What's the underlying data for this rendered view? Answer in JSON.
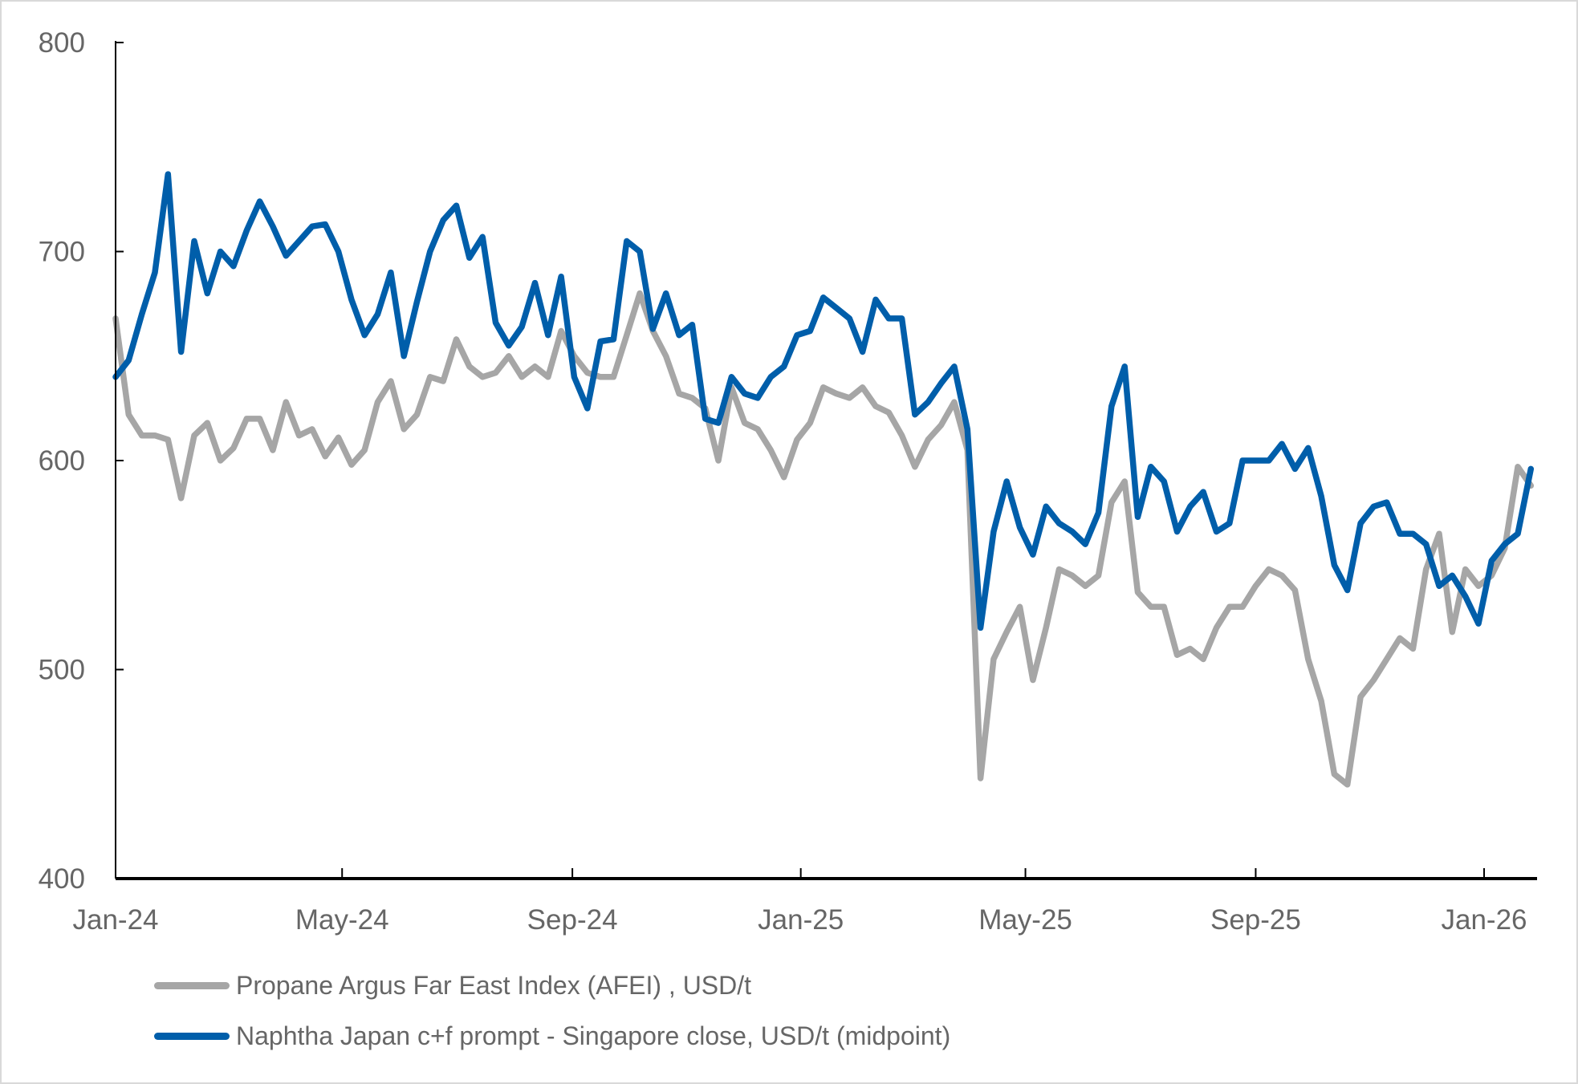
{
  "chart_data": {
    "type": "line",
    "title": "",
    "xlabel": "",
    "ylabel": "",
    "ylim": [
      400,
      800
    ],
    "yticks": [
      400,
      500,
      600,
      700,
      800
    ],
    "xlim": [
      "2024-01-01",
      "2026-01-29"
    ],
    "xticks": [
      {
        "label": "Jan-24",
        "date": "2024-01-01"
      },
      {
        "label": "May-24",
        "date": "2024-05-01"
      },
      {
        "label": "Sep-24",
        "date": "2024-09-01"
      },
      {
        "label": "Jan-25",
        "date": "2025-01-01"
      },
      {
        "label": "May-25",
        "date": "2025-05-01"
      },
      {
        "label": "Sep-25",
        "date": "2025-09-01"
      },
      {
        "label": "Jan-26",
        "date": "2026-01-01"
      }
    ],
    "grid": false,
    "legend_position": "bottom",
    "x": [
      "2024-01-01",
      "2024-01-08",
      "2024-01-15",
      "2024-01-22",
      "2024-01-29",
      "2024-02-05",
      "2024-02-12",
      "2024-02-19",
      "2024-02-26",
      "2024-03-04",
      "2024-03-11",
      "2024-03-18",
      "2024-03-25",
      "2024-04-01",
      "2024-04-08",
      "2024-04-15",
      "2024-04-22",
      "2024-04-29",
      "2024-05-06",
      "2024-05-13",
      "2024-05-20",
      "2024-05-27",
      "2024-06-03",
      "2024-06-10",
      "2024-06-17",
      "2024-06-24",
      "2024-07-01",
      "2024-07-08",
      "2024-07-15",
      "2024-07-22",
      "2024-07-29",
      "2024-08-05",
      "2024-08-12",
      "2024-08-19",
      "2024-08-26",
      "2024-09-02",
      "2024-09-09",
      "2024-09-16",
      "2024-09-23",
      "2024-09-30",
      "2024-10-07",
      "2024-10-14",
      "2024-10-21",
      "2024-10-28",
      "2024-11-04",
      "2024-11-11",
      "2024-11-18",
      "2024-11-25",
      "2024-12-02",
      "2024-12-09",
      "2024-12-16",
      "2024-12-23",
      "2024-12-30",
      "2025-01-06",
      "2025-01-13",
      "2025-01-20",
      "2025-01-27",
      "2025-02-03",
      "2025-02-10",
      "2025-02-17",
      "2025-02-24",
      "2025-03-03",
      "2025-03-10",
      "2025-03-17",
      "2025-03-24",
      "2025-03-31",
      "2025-04-07",
      "2025-04-14",
      "2025-04-21",
      "2025-04-28",
      "2025-05-05",
      "2025-05-12",
      "2025-05-19",
      "2025-05-26",
      "2025-06-02",
      "2025-06-09",
      "2025-06-16",
      "2025-06-23",
      "2025-06-30",
      "2025-07-07",
      "2025-07-14",
      "2025-07-21",
      "2025-07-28",
      "2025-08-04",
      "2025-08-11",
      "2025-08-18",
      "2025-08-25",
      "2025-09-01",
      "2025-09-08",
      "2025-09-15",
      "2025-09-22",
      "2025-09-29",
      "2025-10-06",
      "2025-10-13",
      "2025-10-20",
      "2025-10-27",
      "2025-11-03",
      "2025-11-10",
      "2025-11-17",
      "2025-11-24",
      "2025-12-01",
      "2025-12-08",
      "2025-12-15",
      "2025-12-22",
      "2025-12-29",
      "2026-01-05",
      "2026-01-12",
      "2026-01-19",
      "2026-01-26"
    ],
    "series": [
      {
        "name": "Propane Argus Far East Index (AFEI) , USD/t",
        "color": "#A6A6A6",
        "values": [
          668,
          622,
          612,
          612,
          610,
          582,
          612,
          618,
          600,
          606,
          620,
          620,
          605,
          628,
          612,
          615,
          602,
          611,
          598,
          605,
          628,
          638,
          615,
          622,
          640,
          638,
          658,
          645,
          640,
          642,
          650,
          640,
          645,
          640,
          662,
          650,
          642,
          640,
          640,
          660,
          680,
          662,
          650,
          632,
          630,
          625,
          600,
          635,
          618,
          615,
          605,
          592,
          610,
          618,
          635,
          632,
          630,
          635,
          626,
          623,
          612,
          597,
          610,
          617,
          628,
          605,
          448,
          505,
          518,
          530,
          495,
          520,
          548,
          545,
          540,
          545,
          580,
          590,
          537,
          530,
          530,
          507,
          510,
          505,
          520,
          530,
          530,
          540,
          548,
          545,
          538,
          505,
          485,
          450,
          445,
          487,
          495,
          505,
          515,
          510,
          548,
          565,
          518,
          548,
          540,
          545,
          558,
          597,
          588
        ]
      },
      {
        "name": "Naphtha Japan c+f prompt  - Singapore close, USD/t (midpoint)",
        "color": "#005EAA",
        "values": [
          640,
          648,
          670,
          690,
          737,
          652,
          705,
          680,
          700,
          693,
          710,
          724,
          712,
          698,
          705,
          712,
          713,
          700,
          677,
          660,
          670,
          690,
          650,
          676,
          700,
          715,
          722,
          697,
          707,
          666,
          655,
          664,
          685,
          660,
          688,
          640,
          625,
          657,
          658,
          705,
          700,
          663,
          680,
          660,
          665,
          620,
          618,
          640,
          632,
          630,
          640,
          645,
          660,
          662,
          678,
          673,
          668,
          652,
          677,
          668,
          668,
          622,
          628,
          637,
          645,
          615,
          520,
          566,
          590,
          568,
          555,
          578,
          570,
          566,
          560,
          575,
          626,
          645,
          573,
          597,
          590,
          566,
          578,
          585,
          566,
          570,
          600,
          600,
          600,
          608,
          596,
          606,
          583,
          550,
          538,
          570,
          578,
          580,
          565,
          565,
          560,
          540,
          545,
          535,
          522,
          552,
          560,
          565,
          596
        ]
      }
    ]
  }
}
